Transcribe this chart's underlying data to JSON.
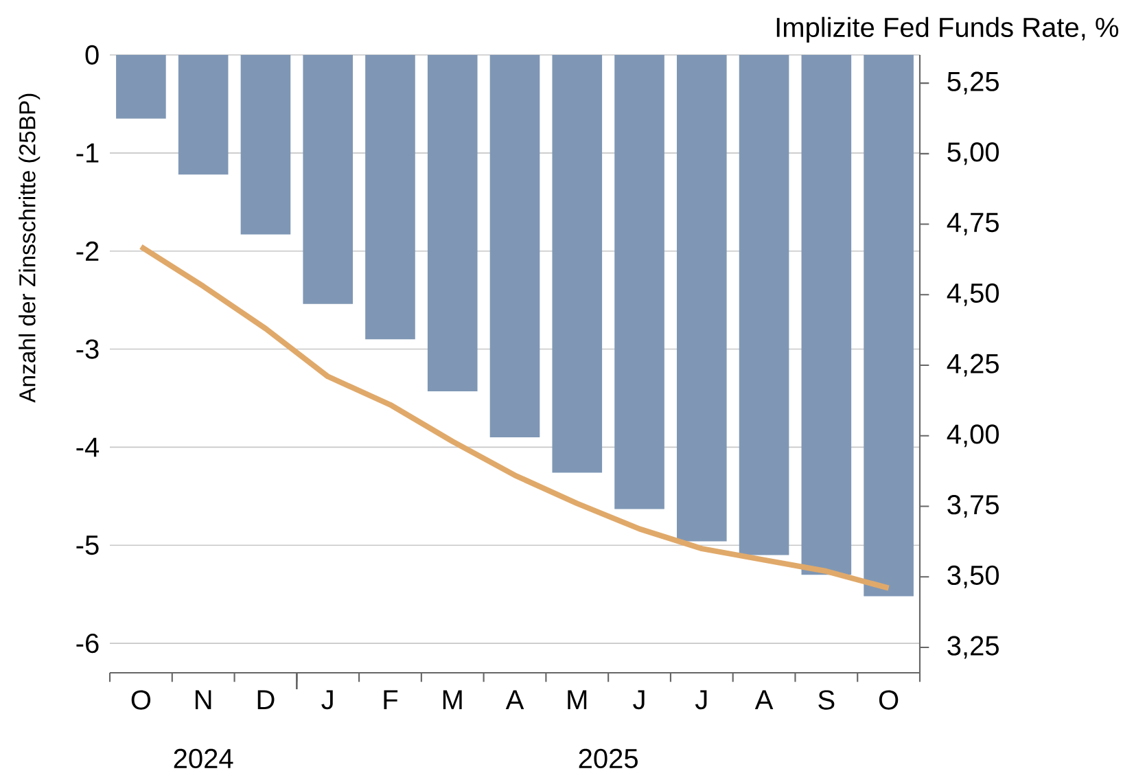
{
  "chart_data": {
    "type": "bar",
    "ylabel": "Anzahl der Zinsschritte (25BP)",
    "y2label": "Implizite Fed Funds Rate, %",
    "categories": [
      "O",
      "N",
      "D",
      "J",
      "F",
      "M",
      "A",
      "M",
      "J",
      "J",
      "A",
      "S",
      "O"
    ],
    "series": [
      {
        "color": "#7f97b5",
        "values": [
          -0.65,
          -1.22,
          -1.83,
          -2.54,
          -2.9,
          -3.43,
          -3.9,
          -4.26,
          -4.63,
          -4.96,
          -5.1,
          -5.3,
          -5.52
        ]
      },
      {
        "type": "line",
        "axis": "y2",
        "color": "#e0a96a",
        "values": [
          4.67,
          4.53,
          4.38,
          4.21,
          4.11,
          3.98,
          3.86,
          3.76,
          3.67,
          3.6,
          3.56,
          3.52,
          3.46
        ]
      }
    ],
    "ylim": [
      -6.3,
      0
    ],
    "yticks": [
      0,
      -1,
      -2,
      -3,
      -4,
      -5,
      -6
    ],
    "y2lim": [
      3.16,
      5.35
    ],
    "y2ticks": [
      {
        "value": 5.25,
        "label": "5,25"
      },
      {
        "value": 5.0,
        "label": "5,00"
      },
      {
        "value": 4.75,
        "label": "4,75"
      },
      {
        "value": 4.5,
        "label": "4,50"
      },
      {
        "value": 4.25,
        "label": "4,25"
      },
      {
        "value": 4.0,
        "label": "4,00"
      },
      {
        "value": 3.75,
        "label": "3,75"
      },
      {
        "value": 3.5,
        "label": "3,50"
      },
      {
        "value": 3.25,
        "label": "3,25"
      }
    ],
    "grid": "y",
    "marker": "none",
    "line_style": "solid",
    "annotations": [
      "2024",
      "2025"
    ]
  }
}
